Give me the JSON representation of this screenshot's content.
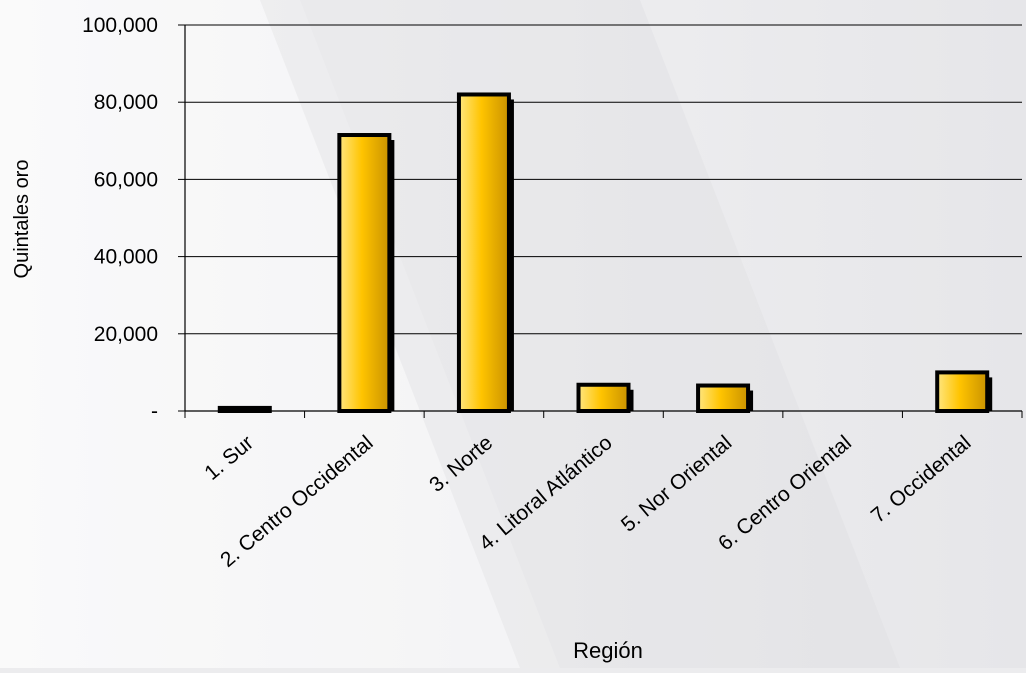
{
  "chart_data": {
    "type": "bar",
    "title": "",
    "xlabel": "Región",
    "ylabel": "Quintales oro",
    "categories": [
      "1.  Sur",
      "2.  Centro Occidental",
      "3.  Norte",
      "4.  Litoral Atlántico",
      "5.  Nor Oriental",
      "6.  Centro Oriental",
      "7.  Occidental"
    ],
    "values": [
      800,
      71500,
      82000,
      6800,
      6600,
      0,
      10000
    ],
    "ylim": [
      0,
      100000
    ],
    "yticks": [
      0,
      20000,
      40000,
      60000,
      80000,
      100000
    ],
    "ytick_labels": [
      "-",
      "20,000",
      "40,000",
      "60,000",
      "80,000",
      "100,000"
    ],
    "grid": true,
    "legend": "none",
    "colors": {
      "bar_light": "#FFE680",
      "bar_mid": "#FFC400",
      "bar_dark": "#B8860B",
      "bar_outline": "#000000",
      "bar_shadow": "#000000",
      "background": "#ECECEE"
    }
  }
}
